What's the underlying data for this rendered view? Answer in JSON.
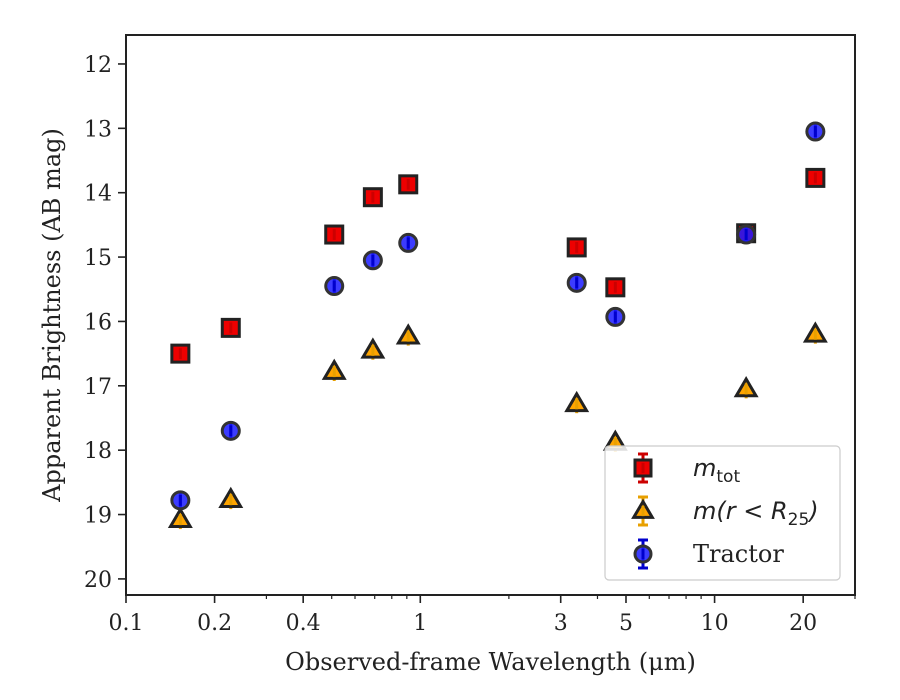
{
  "chart_data": {
    "type": "scatter",
    "title": "",
    "xlabel": "Observed-frame Wavelength (μm)",
    "ylabel": "Apparent Brightness (AB mag)",
    "xscale": "log",
    "xlim": [
      0.1,
      30
    ],
    "ylim": [
      20.25,
      11.55
    ],
    "y_inverted": true,
    "x_ticks": [
      {
        "value": 0.1,
        "label": "0.1"
      },
      {
        "value": 0.2,
        "label": "0.2"
      },
      {
        "value": 0.4,
        "label": "0.4"
      },
      {
        "value": 1,
        "label": "1"
      },
      {
        "value": 3,
        "label": "3"
      },
      {
        "value": 5,
        "label": "5"
      },
      {
        "value": 10,
        "label": "10"
      },
      {
        "value": 20,
        "label": "20"
      }
    ],
    "x_minor_ticks": [
      0.3,
      0.5,
      0.6,
      0.7,
      0.8,
      0.9,
      2,
      4,
      6,
      7,
      8,
      9,
      30
    ],
    "y_ticks": [
      12,
      13,
      14,
      15,
      16,
      17,
      18,
      19,
      20
    ],
    "grid": false,
    "legend_position": "bottom-right",
    "series": [
      {
        "name": "m_tot",
        "legend": {
          "italic": "m",
          "sub": "tot",
          "text": ""
        },
        "marker": "square",
        "fill": "#ee0000",
        "edge": "#222222",
        "errcolor": "#cc0000",
        "x": [
          0.153,
          0.227,
          0.51,
          0.69,
          0.91,
          3.4,
          4.6,
          12.8,
          22.0
        ],
        "y": [
          16.5,
          16.1,
          14.65,
          14.07,
          13.87,
          14.85,
          15.47,
          14.63,
          13.77
        ]
      },
      {
        "name": "m(r<R_25)",
        "legend": {
          "italic": "m(r < R",
          "sub": "25",
          "text": ")"
        },
        "marker": "triangle",
        "fill": "#ffa500",
        "edge": "#222222",
        "errcolor": "#e8a000",
        "x": [
          0.153,
          0.227,
          0.51,
          0.69,
          0.91,
          3.4,
          4.6,
          12.8,
          22.0
        ],
        "y": [
          19.08,
          18.77,
          16.78,
          16.45,
          16.23,
          17.28,
          17.88,
          17.05,
          16.2
        ]
      },
      {
        "name": "Tractor",
        "legend": {
          "italic": "",
          "sub": "",
          "text": "Tractor"
        },
        "marker": "circle",
        "fill": "#1a1aff",
        "edge": "#333333",
        "errcolor": "#0000cc",
        "x": [
          0.153,
          0.227,
          0.51,
          0.69,
          0.91,
          3.4,
          4.6,
          12.8,
          22.0
        ],
        "y": [
          18.78,
          17.7,
          15.45,
          15.05,
          14.78,
          15.4,
          15.93,
          14.65,
          13.05
        ]
      }
    ]
  }
}
